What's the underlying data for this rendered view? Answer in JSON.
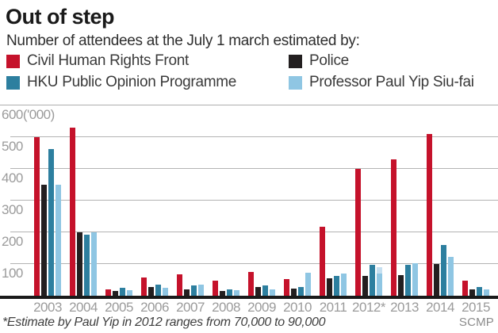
{
  "header": {
    "title": "Out of step",
    "subtitle": "Number of attendees at the July 1 march estimated by:"
  },
  "chart_data": {
    "type": "bar",
    "title": "Out of step",
    "subtitle": "Number of attendees at the July 1 march estimated by:",
    "unit": "'000",
    "ylim": [
      0,
      600
    ],
    "yticks": [
      100,
      200,
      300,
      400,
      500,
      600
    ],
    "ytick_labels": [
      "100",
      "200",
      "300",
      "400",
      "500",
      "600('000)"
    ],
    "grid": true,
    "legend_position": "top",
    "categories": [
      "2003",
      "2004",
      "2005",
      "2006",
      "2007",
      "2008",
      "2009",
      "2010",
      "2011",
      "2012*",
      "2013",
      "2014",
      "2015"
    ],
    "series": [
      {
        "name": "Civil Human Rights Front",
        "color": "#c5122b",
        "values": [
          500,
          530,
          21,
          58,
          68,
          47,
          76,
          52,
          218,
          400,
          430,
          510,
          48
        ]
      },
      {
        "name": "Police",
        "color": "#231f20",
        "values": [
          350,
          200,
          14,
          28,
          19,
          16,
          28,
          23,
          54,
          63,
          66,
          99,
          19
        ]
      },
      {
        "name": "HKU Public Opinion Programme",
        "color": "#2d7f9f",
        "values": [
          462,
          192,
          24,
          36,
          32,
          19,
          33,
          27,
          62,
          98,
          98,
          160,
          27
        ]
      },
      {
        "name": "Professor Paul Yip Siu-fai",
        "color": "#8fc6e3",
        "values": [
          350,
          200,
          18,
          26,
          34,
          17,
          21,
          72,
          70,
          90,
          103,
          122,
          21
        ]
      }
    ],
    "annotations": {
      "yip_2012_range": {
        "series": "Professor Paul Yip Siu-fai",
        "category": "2012*",
        "from": 70,
        "to": 90,
        "color": "#c6e0f1"
      }
    }
  },
  "footer": {
    "footnote": "*Estimate by Paul Yip in 2012 ranges from 70,000 to 90,000",
    "source": "SCMP"
  }
}
